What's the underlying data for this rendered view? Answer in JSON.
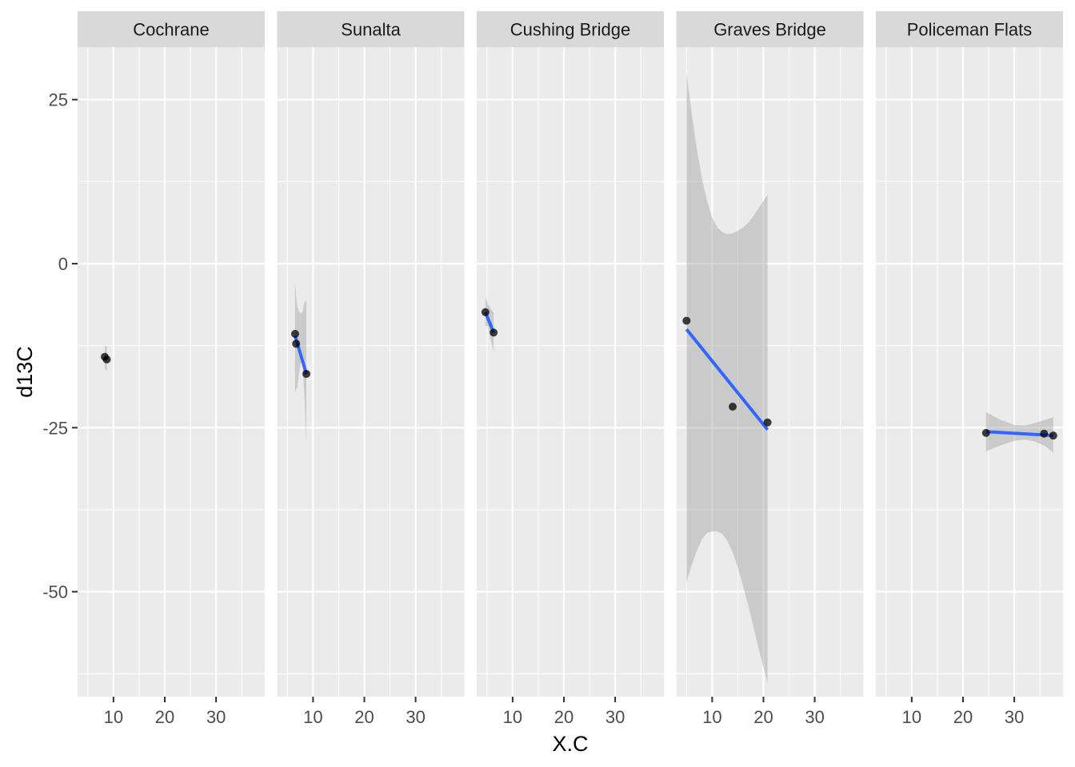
{
  "chart_data": {
    "type": "scatter",
    "facet": "site",
    "xlabel": "X.C",
    "ylabel": "d13C",
    "xlim": [
      3,
      39.5
    ],
    "ylim": [
      -66,
      33
    ],
    "x_ticks": [
      10,
      20,
      30
    ],
    "y_ticks": [
      25,
      0,
      -25,
      -50
    ],
    "grid": true,
    "legend": "none",
    "colors": {
      "panel_bg": "#ebebeb",
      "strip_bg": "#d9d9d9",
      "grid": "#ffffff",
      "point": "#000000",
      "line": "#3366ff",
      "ribbon": "#999999"
    },
    "panels": [
      {
        "title": "Cochrane",
        "points": [
          [
            8.3,
            -14.2
          ],
          [
            8.7,
            -14.6
          ]
        ],
        "fit": [
          [
            8.3,
            -14.2
          ],
          [
            8.7,
            -14.6
          ]
        ],
        "ribbon": [
          [
            8.3,
            -16.0,
            -12.4
          ],
          [
            8.7,
            -16.4,
            -12.8
          ]
        ]
      },
      {
        "title": "Sunalta",
        "points": [
          [
            6.5,
            -10.7
          ],
          [
            6.7,
            -12.2
          ],
          [
            8.7,
            -16.8
          ]
        ],
        "fit": [
          [
            6.5,
            -11.0
          ],
          [
            8.7,
            -16.8
          ]
        ],
        "ribbon": [
          [
            6.5,
            -19.5,
            -3.0
          ],
          [
            6.9,
            -19.0,
            -6.5
          ],
          [
            7.4,
            -16.0,
            -7.5
          ],
          [
            7.9,
            -14.0,
            -7.5
          ],
          [
            8.3,
            -20.0,
            -6.0
          ],
          [
            8.7,
            -27.5,
            -5.5
          ]
        ]
      },
      {
        "title": "Cushing Bridge",
        "points": [
          [
            4.7,
            -7.4
          ],
          [
            6.3,
            -10.5
          ]
        ],
        "fit": [
          [
            4.7,
            -7.4
          ],
          [
            6.3,
            -10.5
          ]
        ],
        "ribbon": [
          [
            4.7,
            -9.5,
            -5.0
          ],
          [
            5.2,
            -9.5,
            -6.2
          ],
          [
            5.7,
            -11.5,
            -6.8
          ],
          [
            6.3,
            -13.5,
            -7.5
          ]
        ]
      },
      {
        "title": "Graves Bridge",
        "points": [
          [
            5.0,
            -8.7
          ],
          [
            14.0,
            -21.8
          ],
          [
            20.8,
            -24.2
          ]
        ],
        "fit": [
          [
            5.0,
            -10.0
          ],
          [
            20.8,
            -25.3
          ]
        ],
        "ribbon": [
          [
            5.0,
            -48.5,
            29.0
          ],
          [
            6.0,
            -46.0,
            23.0
          ],
          [
            7.0,
            -43.8,
            17.5
          ],
          [
            8.0,
            -42.0,
            13.0
          ],
          [
            9.0,
            -41.0,
            9.5
          ],
          [
            10.0,
            -40.8,
            7.0
          ],
          [
            11.0,
            -40.8,
            5.5
          ],
          [
            12.0,
            -41.2,
            4.8
          ],
          [
            13.0,
            -42.3,
            4.5
          ],
          [
            14.0,
            -44.0,
            4.6
          ],
          [
            15.0,
            -46.3,
            5.0
          ],
          [
            16.0,
            -49.0,
            5.5
          ],
          [
            17.0,
            -52.0,
            6.2
          ],
          [
            18.0,
            -55.2,
            7.2
          ],
          [
            19.0,
            -58.5,
            8.4
          ],
          [
            20.0,
            -61.5,
            9.6
          ],
          [
            20.8,
            -64.0,
            10.5
          ]
        ]
      },
      {
        "title": "Policeman Flats",
        "points": [
          [
            24.5,
            -25.8
          ],
          [
            35.8,
            -25.9
          ],
          [
            37.6,
            -26.2
          ]
        ],
        "fit": [
          [
            24.5,
            -25.6
          ],
          [
            37.6,
            -26.2
          ]
        ],
        "ribbon": [
          [
            24.5,
            -28.6,
            -22.6
          ],
          [
            27.0,
            -27.8,
            -23.7
          ],
          [
            30.0,
            -27.0,
            -24.6
          ],
          [
            32.0,
            -26.8,
            -24.7
          ],
          [
            34.0,
            -27.1,
            -24.3
          ],
          [
            36.0,
            -27.8,
            -23.8
          ],
          [
            37.6,
            -28.8,
            -23.4
          ]
        ]
      }
    ]
  }
}
